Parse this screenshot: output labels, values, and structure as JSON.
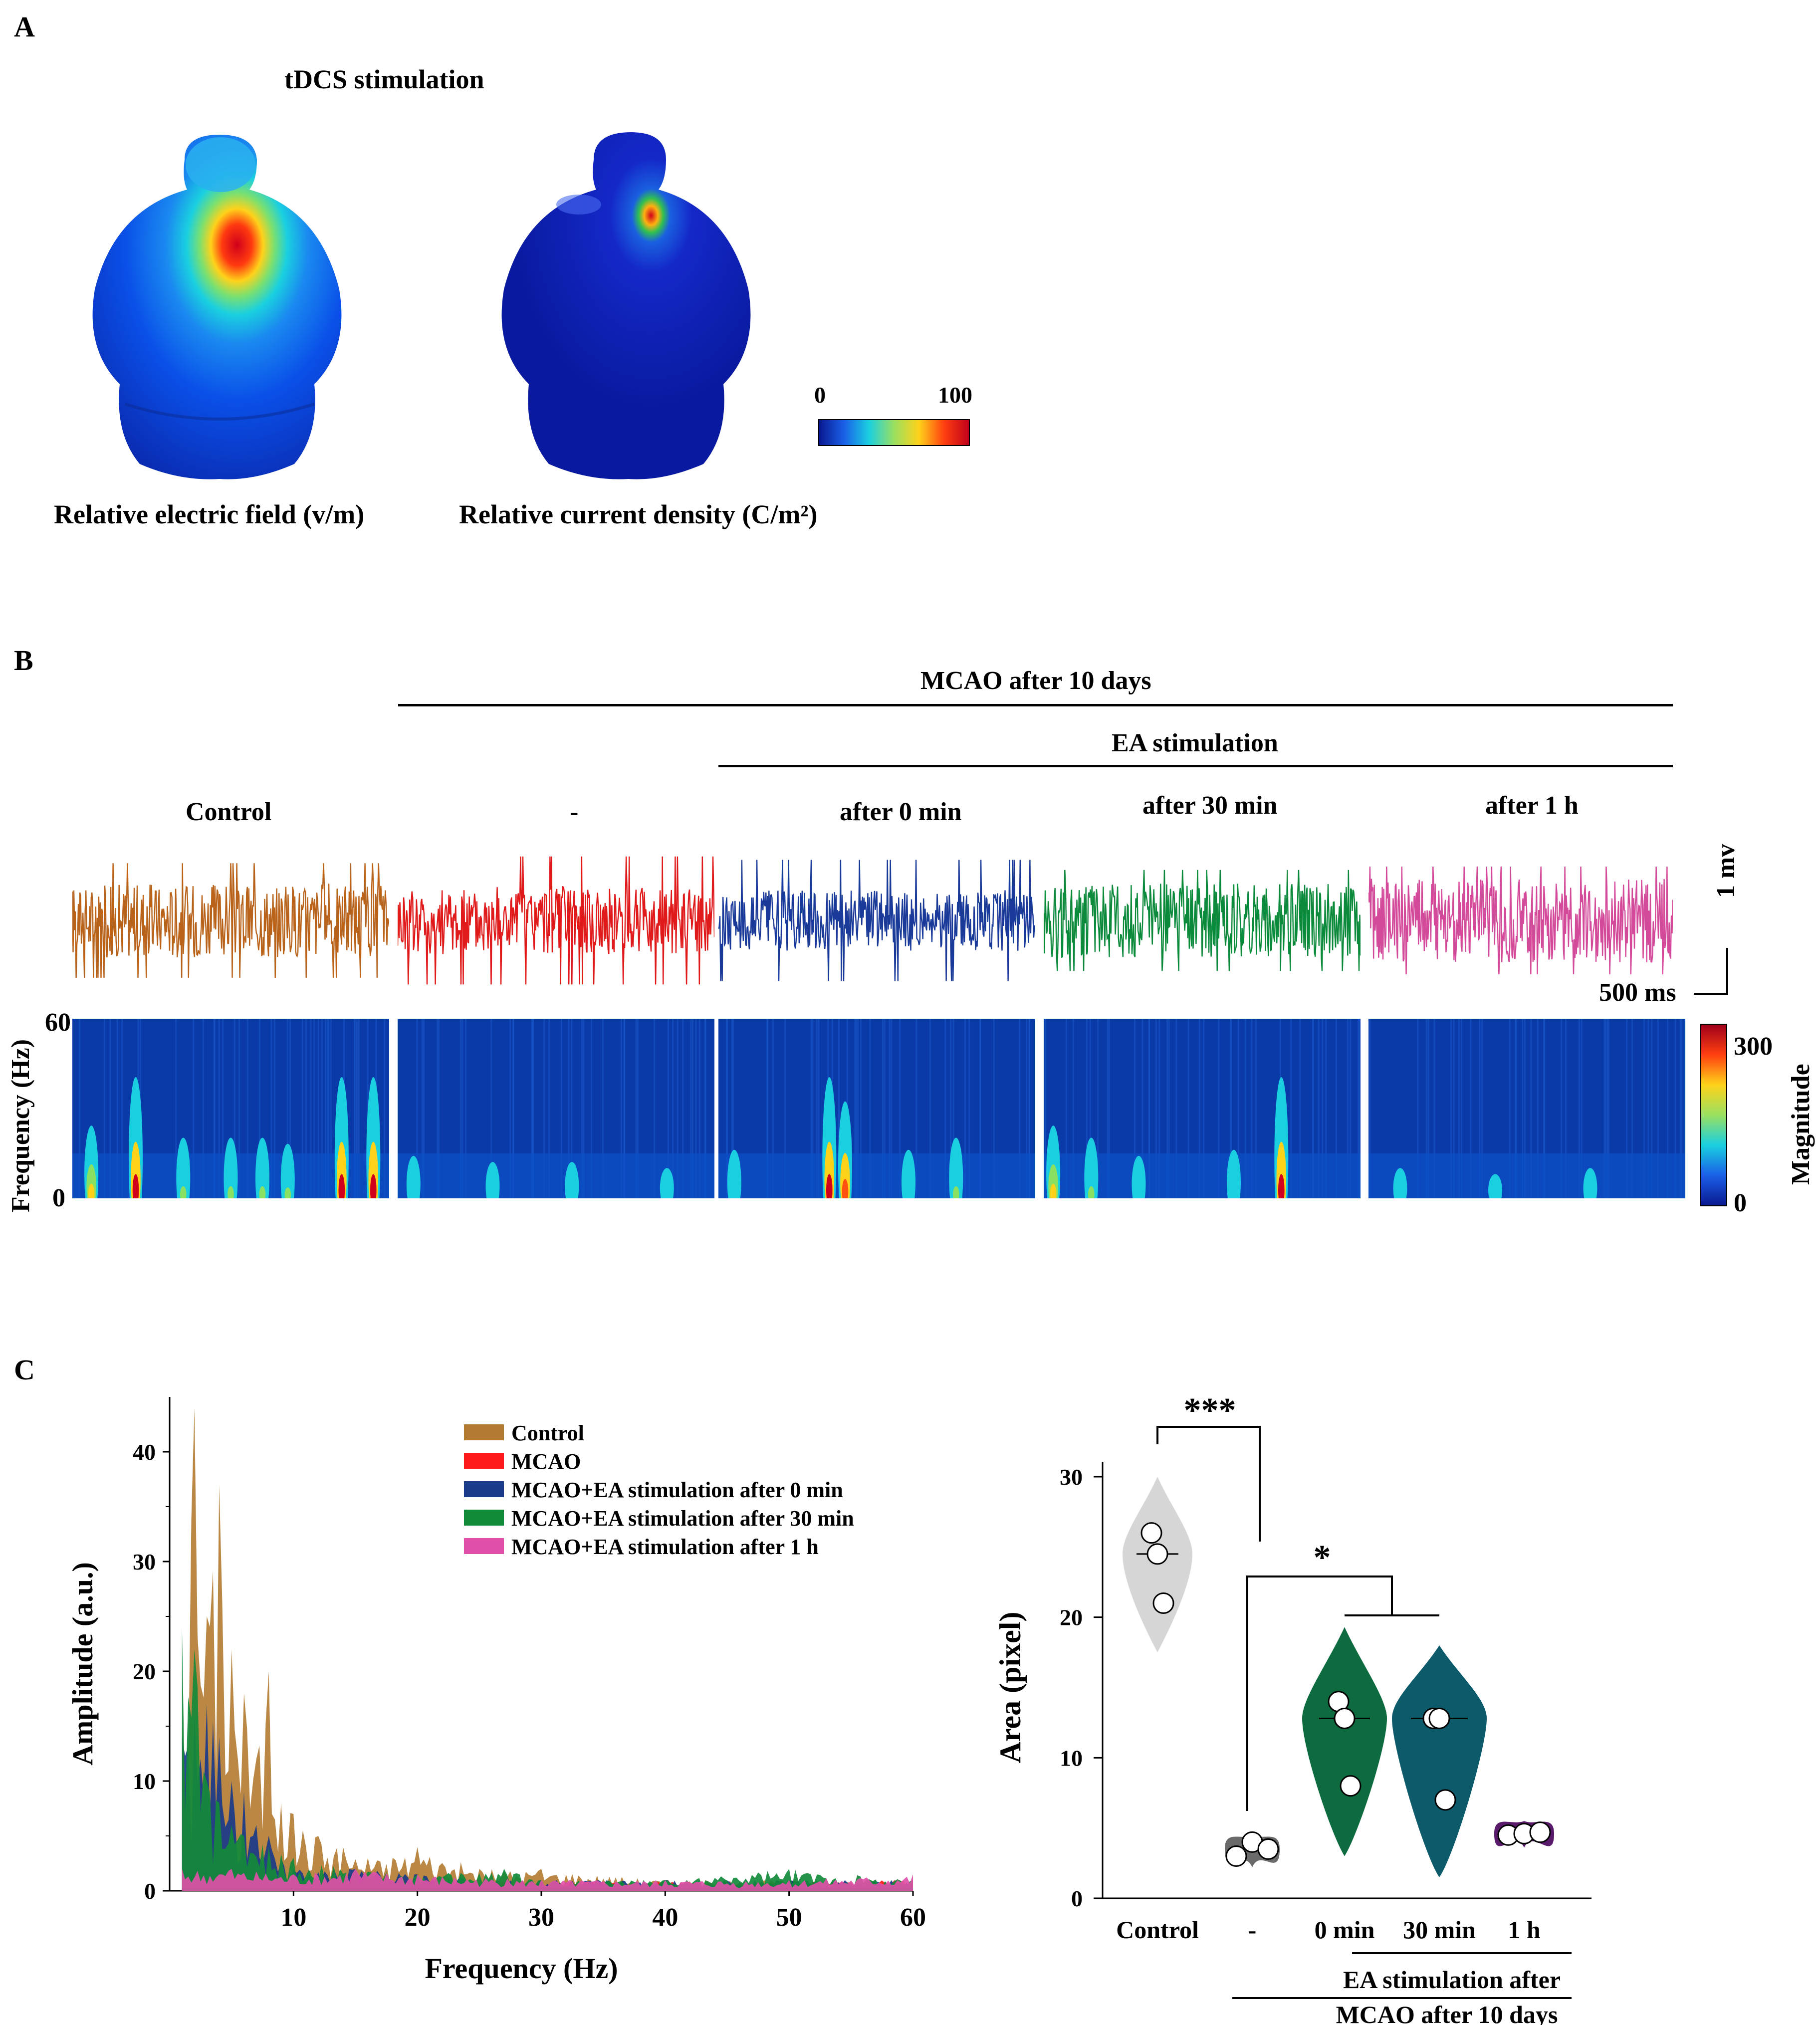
{
  "panel_a": {
    "label": "A",
    "title": "tDCS stimulation",
    "left_caption": "Relative electric field (v/m)",
    "right_caption": "Relative current density (C/m²)",
    "colorbar": {
      "min_label": "0",
      "max_label": "100"
    }
  },
  "panel_b": {
    "label": "B",
    "header_top": "MCAO after 10 days",
    "header_sub": "EA stimulation",
    "conditions": [
      {
        "label": "Control",
        "color": "#b8621a"
      },
      {
        "label": "-",
        "color": "#e01a1a"
      },
      {
        "label": "after 0 min",
        "color": "#1a3a9a"
      },
      {
        "label": "after 30 min",
        "color": "#0a8a3a"
      },
      {
        "label": "after 1 h",
        "color": "#d44a9a"
      }
    ],
    "scale_bar": {
      "vertical": "1 mv",
      "horizontal": "500 ms"
    },
    "spectrogram": {
      "ylabel": "Frequency (Hz)",
      "y_top": "60",
      "y_bottom": "0",
      "colorbar_label": "Magnitude",
      "colorbar_max": "300",
      "colorbar_min": "0"
    }
  },
  "panel_c": {
    "label": "C",
    "chart_data": [
      {
        "type": "area",
        "title": "",
        "xlabel": "Frequency (Hz)",
        "ylabel": "Amplitude (a.u.)",
        "xlim": [
          0,
          60
        ],
        "ylim": [
          0,
          45
        ],
        "xticks": [
          "10",
          "20",
          "30",
          "40",
          "50",
          "60"
        ],
        "yticks": [
          "0",
          "10",
          "20",
          "30",
          "40"
        ],
        "legend": [
          {
            "name": "Control",
            "color": "#b27a30"
          },
          {
            "name": "MCAO",
            "color": "#ff1a1a"
          },
          {
            "name": "MCAO+EA stimulation after 0 min",
            "color": "#1a3a8a"
          },
          {
            "name": "MCAO+EA stimulation after 30 min",
            "color": "#128a3a"
          },
          {
            "name": "MCAO+EA stimulation after 1 h",
            "color": "#e050a8"
          }
        ],
        "series": [
          {
            "name": "Control",
            "x": [
              1,
              2,
              3,
              4,
              5,
              6,
              7,
              8,
              9,
              10,
              12,
              14,
              16,
              18,
              20,
              25,
              30,
              40,
              50,
              60
            ],
            "values": [
              15,
              44,
              25,
              37,
              22,
              18,
              12,
              20,
              8,
              7,
              5,
              4,
              3,
              3,
              4,
              2,
              2,
              1,
              1,
              1
            ]
          },
          {
            "name": "MCAO",
            "x": [
              1,
              2,
              3,
              4,
              5,
              6,
              8,
              10,
              15,
              20,
              30,
              40,
              50,
              60
            ],
            "values": [
              2,
              4.5,
              3,
              2.5,
              2,
              1.5,
              1.5,
              1,
              1,
              1,
              0.8,
              0.8,
              0.8,
              1
            ]
          },
          {
            "name": "MCAO+EA stimulation after 0 min",
            "x": [
              1,
              2,
              3,
              4,
              5,
              6,
              7,
              8,
              9,
              10,
              15,
              20,
              30,
              40,
              50,
              60
            ],
            "values": [
              14,
              16,
              17,
              14,
              10,
              9,
              6,
              5,
              3,
              2,
              2,
              1.5,
              1,
              1,
              1,
              1
            ]
          },
          {
            "name": "MCAO+EA stimulation after 30 min",
            "x": [
              1,
              2,
              3,
              4,
              5,
              6,
              8,
              10,
              15,
              20,
              27,
              30,
              40,
              50,
              60
            ],
            "values": [
              24,
              22,
              10,
              8,
              6,
              5,
              4,
              3,
              2,
              1.5,
              2,
              1,
              1,
              2,
              1
            ]
          },
          {
            "name": "MCAO+EA stimulation after 1 h",
            "x": [
              1,
              5,
              10,
              15,
              20,
              30,
              40,
              50,
              60
            ],
            "values": [
              2,
              2,
              1.5,
              2,
              1.5,
              1,
              1,
              1,
              1.5
            ]
          }
        ]
      },
      {
        "type": "violin",
        "ylabel": "Area (pixel)",
        "ylim": [
          0,
          30
        ],
        "yticks": [
          "0",
          "10",
          "20",
          "30"
        ],
        "categories": [
          "Control",
          "-",
          "0 min",
          "30 min",
          "1 h"
        ],
        "colors": [
          "#d6d6d6",
          "#6a6a6a",
          "#0d6b3f",
          "#0d5a6b",
          "#5a1a6b"
        ],
        "points": [
          [
            26,
            24.5,
            21
          ],
          [
            3,
            4,
            3.5
          ],
          [
            14,
            12.8,
            8
          ],
          [
            12.8,
            12.8,
            7
          ],
          [
            4.5,
            4.6,
            4.7
          ]
        ],
        "medians": [
          24.5,
          3.5,
          12.8,
          12.8,
          4.6
        ],
        "group_label_1": "EA stimulation after",
        "group_label_2": "MCAO after 10 days",
        "significance": [
          {
            "label": "***",
            "from": "Control",
            "to": "-"
          },
          {
            "label": "*",
            "from": "-",
            "to": "0 min / 30 min"
          }
        ]
      }
    ]
  }
}
